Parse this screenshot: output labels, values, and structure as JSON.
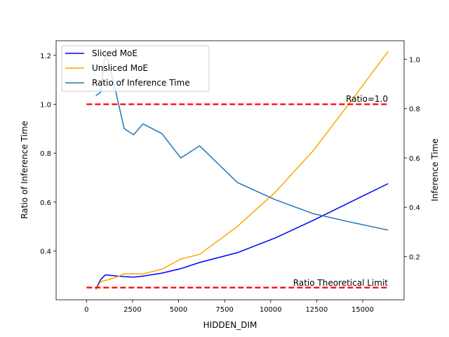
{
  "chart_data": {
    "type": "line",
    "xlabel": "HIDDEN_DIM",
    "ylabel_left": "Ratio of Inference Time",
    "ylabel_right": "Inference Time",
    "xlim": [
      -1650,
      17250
    ],
    "ylim_left": [
      0.2,
      1.26
    ],
    "ylim_right": [
      0.025,
      1.075
    ],
    "x_ticks": [
      0,
      2500,
      5000,
      7500,
      10000,
      12500,
      15000
    ],
    "y_ticks_left": [
      0.4,
      0.6,
      0.8,
      1.0,
      1.2
    ],
    "y_ticks_right": [
      0.2,
      0.4,
      0.6,
      0.8,
      1.0
    ],
    "grid": false,
    "legend_position": "top-left",
    "series": [
      {
        "name": "Sliced MoE",
        "axis": "right",
        "color": "#0000ff",
        "x": [
          512,
          768,
          1024,
          1536,
          2048,
          2560,
          3072,
          4096,
          5120,
          6144,
          8192,
          10240,
          12288,
          14336,
          16384
        ],
        "y": [
          0.069,
          0.107,
          0.126,
          0.122,
          0.119,
          0.117,
          0.121,
          0.133,
          0.151,
          0.176,
          0.216,
          0.275,
          0.346,
          0.421,
          0.496
        ]
      },
      {
        "name": "Unsliced MoE",
        "axis": "right",
        "color": "#ffa500",
        "x": [
          512,
          768,
          1024,
          1536,
          2048,
          2560,
          3072,
          4096,
          5120,
          6144,
          8192,
          10240,
          12288,
          14336,
          16384
        ],
        "y": [
          0.066,
          0.099,
          0.103,
          0.114,
          0.13,
          0.13,
          0.13,
          0.149,
          0.19,
          0.209,
          0.322,
          0.46,
          0.627,
          0.827,
          1.032
        ]
      },
      {
        "name": "Ratio of Inference Time",
        "axis": "left",
        "color": "#1f77b4",
        "x": [
          512,
          768,
          1024,
          1536,
          2048,
          2560,
          3072,
          4096,
          5120,
          6144,
          8192,
          10240,
          12288,
          14336,
          16384
        ],
        "y": [
          1.035,
          1.05,
          1.22,
          1.07,
          0.9,
          0.875,
          0.92,
          0.88,
          0.78,
          0.83,
          0.68,
          0.61,
          0.553,
          0.518,
          0.485
        ]
      }
    ],
    "reference_lines": [
      {
        "label": "Ratio=1.0",
        "axis": "left",
        "y": 1.0,
        "x_range": [
          0,
          16384
        ],
        "color": "#ff0000"
      },
      {
        "label": "Ratio Theoretical Limit",
        "axis": "left",
        "y": 0.25,
        "x_range": [
          0,
          16384
        ],
        "color": "#ff0000"
      }
    ]
  }
}
